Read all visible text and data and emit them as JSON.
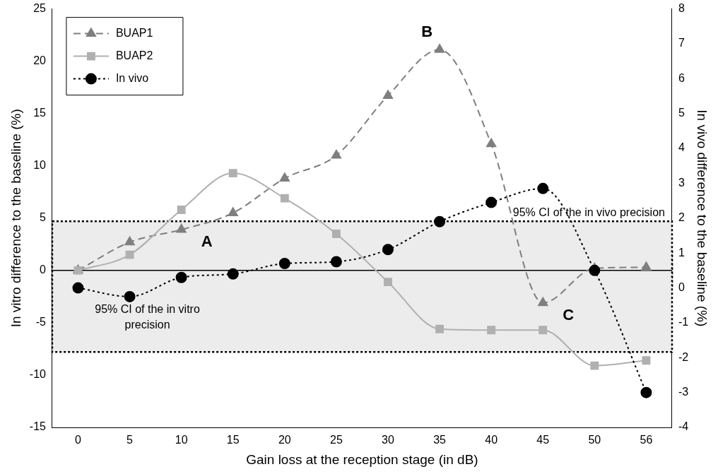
{
  "chart_data": {
    "type": "line",
    "xlabel": "Gain loss at the reception stage (in dB)",
    "ylabel": "In vitro difference to the baseline (%)",
    "y2label": "In vivo difference to the baseline (%)",
    "categories": [
      "0",
      "5",
      "10",
      "15",
      "20",
      "25",
      "30",
      "35",
      "40",
      "45",
      "50",
      "56"
    ],
    "series": [
      {
        "name": "BUAP1",
        "color": "#7f7f7f",
        "marker": "triangle",
        "line_style": "dashed",
        "values": [
          0,
          2.7,
          3.9,
          5.5,
          8.8,
          11,
          16.7,
          21.1,
          12.1,
          -3.1,
          0.2,
          0.3
        ]
      },
      {
        "name": "BUAP2",
        "color": "#b0b0b0",
        "marker": "square",
        "line_style": "solid",
        "values": [
          0,
          1.5,
          5.8,
          9.3,
          6.9,
          3.5,
          -1.1,
          -5.6,
          -5.7,
          -5.7,
          -9.1,
          -8.6
        ]
      },
      {
        "name": "In vivo",
        "color": "#000000",
        "marker": "circle",
        "line_style": "dotted",
        "axis": "y2",
        "values": [
          0,
          -0.25,
          0.3,
          0.4,
          0.7,
          0.75,
          1.1,
          1.9,
          2.45,
          2.85,
          0.5,
          -3.0
        ]
      }
    ],
    "ylim": [
      -15,
      25
    ],
    "yticks": [
      -15,
      -10,
      -5,
      0,
      5,
      10,
      15,
      20,
      25
    ],
    "y2lim": [
      -4,
      8
    ],
    "y2ticks": [
      -4,
      -3,
      -2,
      -1,
      0,
      1,
      2,
      3,
      4,
      5,
      6,
      7,
      8
    ],
    "ref_lines": [
      {
        "axis": "y",
        "value": 0,
        "color": "#000000"
      }
    ],
    "bands": [
      {
        "axis": "y",
        "from": -1.5,
        "to": 1.8,
        "label": "95% CI of the in vitro precision",
        "color": "#ececec"
      },
      {
        "axis": "y2",
        "from": -1.84,
        "to": 1.91,
        "label": "95% CI of the in vivo precision",
        "color": "#ececec"
      }
    ],
    "annotations": [
      {
        "text": "A",
        "x": "10",
        "y": 3.9
      },
      {
        "text": "B",
        "x": "35",
        "y": 21.1
      },
      {
        "text": "C",
        "x": "45",
        "y": -3.1
      }
    ],
    "grid": false,
    "legend": "top left"
  }
}
